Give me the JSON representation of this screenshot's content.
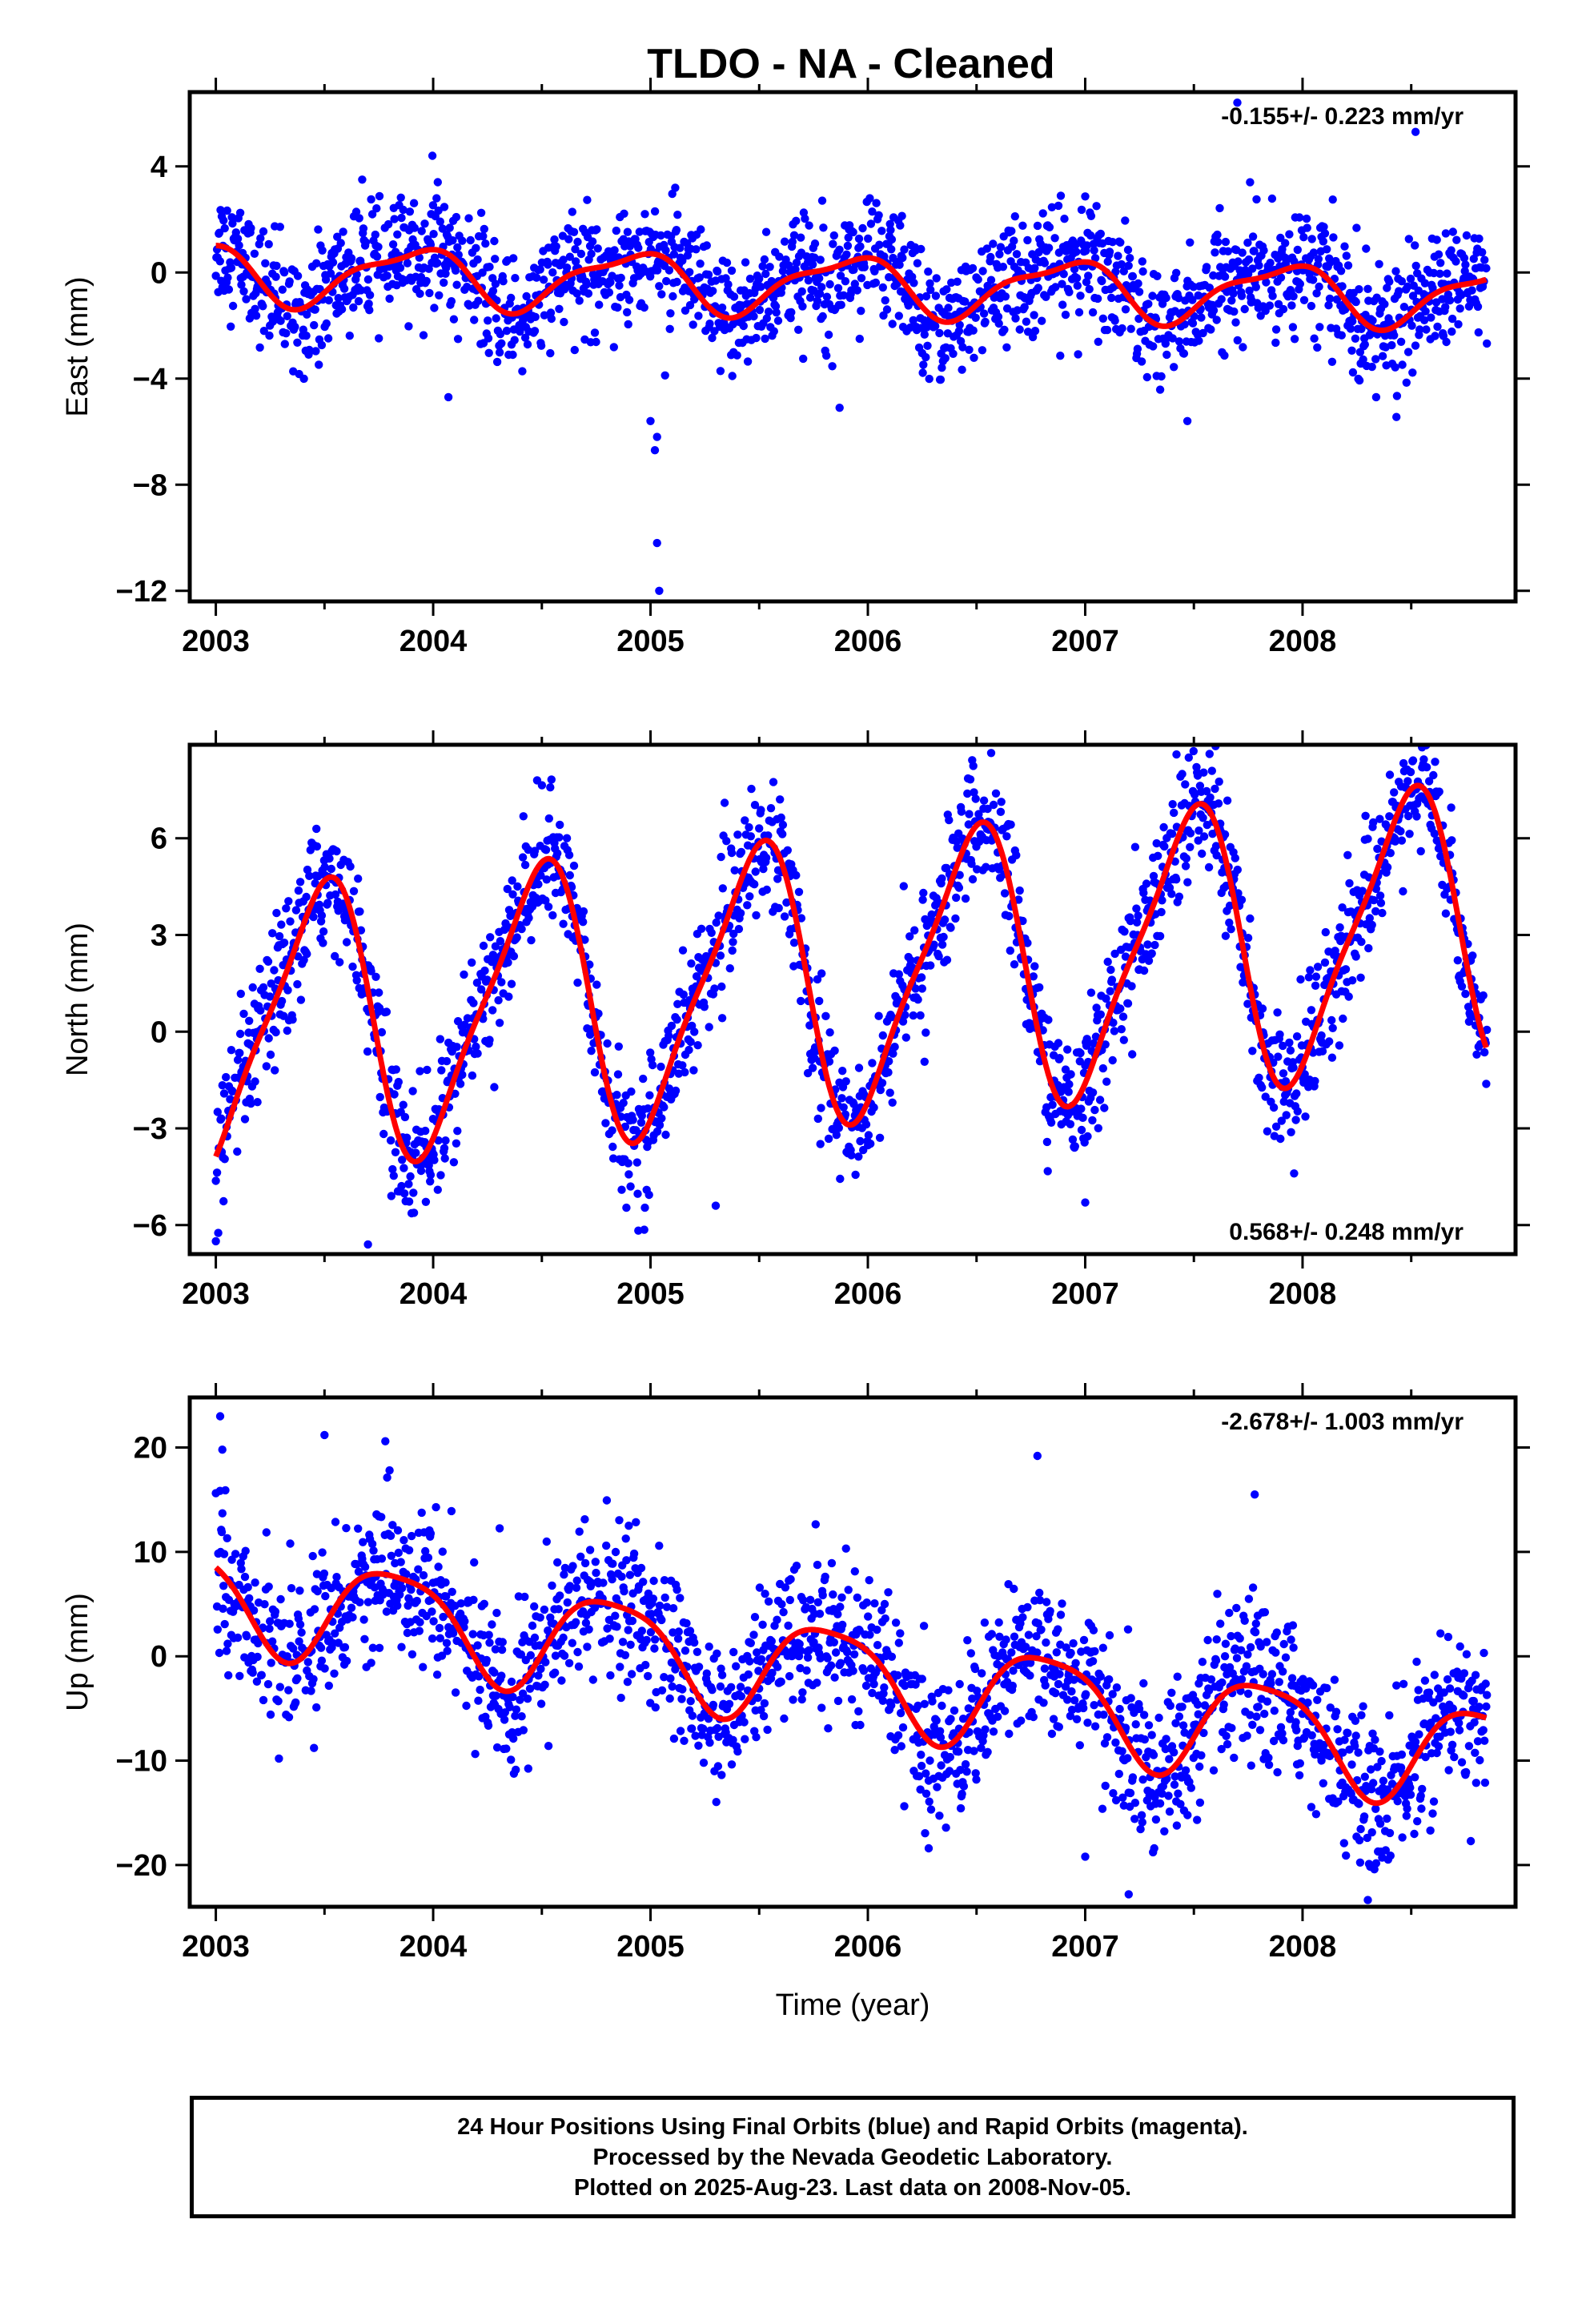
{
  "title": "TLDO  - NA - Cleaned",
  "footer": {
    "lines": [
      "24 Hour Positions Using Final Orbits (blue) and Rapid Orbits (magenta).",
      "Processed by the Nevada Geodetic Laboratory.",
      "Plotted on 2025-Aug-23. Last data on 2008-Nov-05."
    ]
  },
  "colors": {
    "points": "#0000ff",
    "model": "#ff0000",
    "frame": "#000000"
  },
  "chart_data": [
    {
      "type": "scatter",
      "ylabel": "East (mm)",
      "xlabel": "",
      "rate_label": "-0.155+/- 0.223 mm/yr",
      "rate_position": "top-right",
      "xlim": [
        2002.88,
        2008.98
      ],
      "ylim": [
        -12.4,
        6.8
      ],
      "xticks": [
        2003,
        2004,
        2005,
        2006,
        2007,
        2008
      ],
      "yticks": [
        4,
        0,
        -4,
        -8,
        -12
      ],
      "ytick_labels": [
        "4",
        "0",
        "−4",
        "−8",
        "−12"
      ],
      "x_range": [
        2003.0,
        2008.85
      ],
      "model": {
        "trend": -0.155,
        "offset": 0.0,
        "annual_amp": 1.05,
        "annual_phase": 2.2,
        "semi_amp": 0.35,
        "semi_phase": 0.5,
        "noise": 1.1
      },
      "outliers": [
        [
          2004.07,
          -4.7
        ],
        [
          2005.03,
          -6.2
        ],
        [
          2005.02,
          -6.7
        ],
        [
          2005.03,
          -10.2
        ],
        [
          2005.04,
          -12.0
        ],
        [
          2005.0,
          -5.6
        ],
        [
          2007.47,
          -5.6
        ],
        [
          2007.7,
          6.4
        ],
        [
          2008.52,
          5.3
        ],
        [
          2005.87,
          -5.1
        ]
      ]
    },
    {
      "type": "scatter",
      "ylabel": "North (mm)",
      "xlabel": "",
      "rate_label": "0.568+/- 0.248 mm/yr",
      "rate_position": "bottom-right",
      "xlim": [
        2002.88,
        2008.98
      ],
      "ylim": [
        -6.9,
        8.9
      ],
      "xticks": [
        2003,
        2004,
        2005,
        2006,
        2007,
        2008
      ],
      "yticks": [
        6,
        3,
        0,
        -3,
        -6
      ],
      "ytick_labels": [
        "6",
        "3",
        "0",
        "−3",
        "−6"
      ],
      "x_range": [
        2003.0,
        2008.85
      ],
      "model": {
        "trend": 0.568,
        "offset": 0.0,
        "annual_amp": 4.2,
        "annual_phase": -1.4,
        "semi_amp": 0.9,
        "semi_phase": 0.3,
        "noise": 1.0
      },
      "outliers": [
        [
          2003.0,
          -6.5
        ],
        [
          2003.7,
          -6.6
        ],
        [
          2005.3,
          -5.4
        ],
        [
          2007.0,
          -5.3
        ],
        [
          2007.42,
          8.6
        ],
        [
          2008.55,
          8.2
        ]
      ]
    },
    {
      "type": "scatter",
      "ylabel": "Up (mm)",
      "xlabel": "Time (year)",
      "rate_label": "-2.678+/- 1.003 mm/yr",
      "rate_position": "top-right",
      "xlim": [
        2002.88,
        2008.98
      ],
      "ylim": [
        -24,
        24.8
      ],
      "xticks": [
        2003,
        2004,
        2005,
        2006,
        2007,
        2008
      ],
      "yticks": [
        20,
        10,
        0,
        -10,
        -20
      ],
      "ytick_labels": [
        "20",
        "10",
        "0",
        "−10",
        "−20"
      ],
      "x_range": [
        2003.0,
        2008.85
      ],
      "model": {
        "trend": -2.678,
        "offset": 6.0,
        "annual_amp": 4.8,
        "annual_phase": -3.6,
        "semi_amp": 1.0,
        "semi_phase": 0.4,
        "noise": 3.6
      },
      "outliers": [
        [
          2003.02,
          23.0
        ],
        [
          2003.03,
          19.8
        ],
        [
          2003.5,
          21.2
        ],
        [
          2003.78,
          20.6
        ],
        [
          2006.78,
          19.2
        ],
        [
          2007.78,
          15.5
        ],
        [
          2007.2,
          -22.8
        ],
        [
          2006.28,
          -18.4
        ],
        [
          2007.0,
          -19.2
        ],
        [
          2008.2,
          -19.1
        ]
      ]
    }
  ]
}
